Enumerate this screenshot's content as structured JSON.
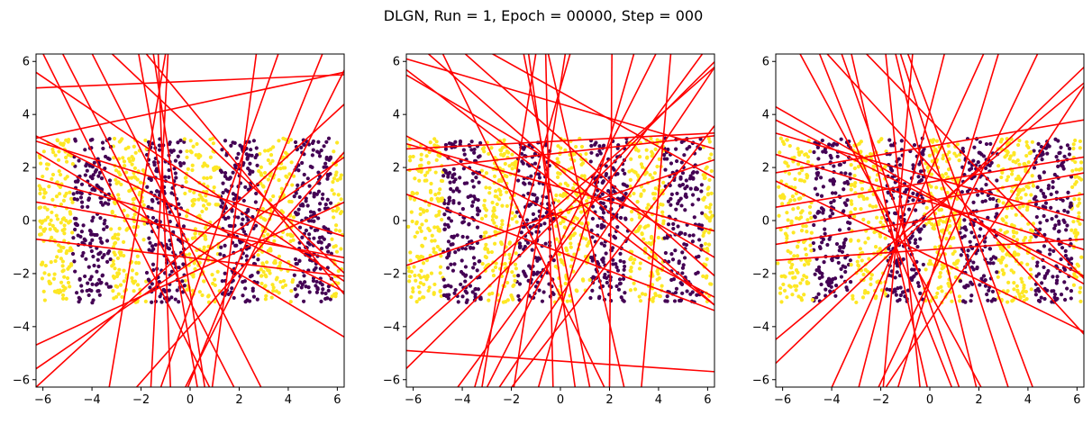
{
  "figure": {
    "suptitle": "DLGN, Run = 1, Epoch = 00000, Step = 000"
  },
  "colors": {
    "class_a": "#fde725",
    "class_b": "#440154",
    "lines": "#ff0000",
    "frame": "#000000"
  },
  "chart_data": [
    {
      "type": "scatter",
      "title": "",
      "xlabel": "",
      "ylabel": "",
      "xlim": [
        -6.28,
        6.28
      ],
      "ylim": [
        -6.28,
        6.28
      ],
      "xticks": [
        -6,
        -4,
        -2,
        0,
        2,
        4,
        6
      ],
      "yticks": [
        -6,
        -4,
        -2,
        0,
        2,
        4,
        6
      ],
      "grid": false,
      "point_data": {
        "x_range": [
          -6.2,
          6.2
        ],
        "y_range": [
          -3.1,
          3.1
        ],
        "stripe_width": 1.55,
        "class_b_stripe_centers": [
          -4,
          -1,
          2,
          5
        ],
        "points_per_stripe": 150
      },
      "series": [
        {
          "values": [
            [
              -6.3,
              3.1,
              6.3,
              5.6
            ],
            [
              -6.3,
              5.0,
              6.3,
              5.5
            ],
            [
              -6.3,
              5.6,
              6.3,
              -2.3
            ],
            [
              -6.3,
              2.6,
              6.3,
              -4.4
            ],
            [
              -6.3,
              3.2,
              6.3,
              -2.7
            ],
            [
              -6.3,
              1.6,
              6.3,
              -1.6
            ],
            [
              -6.3,
              0.7,
              6.3,
              -1.4
            ],
            [
              -6.3,
              -0.7,
              6.3,
              -2.1
            ],
            [
              -6.3,
              -4.7,
              6.3,
              0.7
            ],
            [
              -6.3,
              -5.6,
              6.3,
              2.4
            ],
            [
              -6.3,
              -6.3,
              6.3,
              4.4
            ],
            [
              -6.3,
              3.0,
              6.3,
              -0.6
            ],
            [
              -6.0,
              6.3,
              0.8,
              -6.3
            ],
            [
              -5.2,
              6.3,
              1.8,
              -6.3
            ],
            [
              -4.0,
              6.3,
              2.9,
              -6.3
            ],
            [
              -2.1,
              6.3,
              0.3,
              -6.3
            ],
            [
              -1.5,
              6.3,
              0.6,
              -6.3
            ],
            [
              -0.9,
              6.3,
              -1.6,
              -6.3
            ],
            [
              -1.3,
              6.3,
              -0.8,
              -6.3
            ],
            [
              -1.0,
              6.3,
              -3.3,
              -6.3
            ],
            [
              3.6,
              6.3,
              -1.2,
              -6.3
            ],
            [
              5.4,
              6.3,
              -0.1,
              -6.3
            ],
            [
              2.7,
              6.3,
              0.9,
              -6.3
            ],
            [
              6.3,
              5.7,
              -0.2,
              -6.3
            ],
            [
              6.3,
              2.6,
              -2.2,
              -6.3
            ],
            [
              -1.8,
              6.3,
              6.3,
              -2.8
            ],
            [
              -3.2,
              6.3,
              6.3,
              -2.0
            ]
          ]
        }
      ]
    },
    {
      "type": "scatter",
      "title": "",
      "xlabel": "",
      "ylabel": "",
      "xlim": [
        -6.28,
        6.28
      ],
      "ylim": [
        -6.28,
        6.28
      ],
      "xticks": [
        -6,
        -4,
        -2,
        0,
        2,
        4,
        6
      ],
      "yticks": [
        -6,
        -4,
        -2,
        0,
        2,
        4,
        6
      ],
      "grid": false,
      "point_data": {
        "x_range": [
          -6.2,
          6.2
        ],
        "y_range": [
          -3.1,
          3.1
        ],
        "stripe_width": 1.55,
        "class_b_stripe_centers": [
          -4,
          -1,
          2,
          5
        ],
        "points_per_stripe": 150
      },
      "series": [
        {
          "values": [
            [
              -6.3,
              5.7,
              6.3,
              -3.2
            ],
            [
              -6.3,
              5.5,
              6.3,
              -1.4
            ],
            [
              -6.3,
              3.2,
              6.3,
              -2.9
            ],
            [
              -6.3,
              2.9,
              6.3,
              -0.4
            ],
            [
              -6.3,
              1.9,
              6.3,
              3.2
            ],
            [
              -6.3,
              2.7,
              6.3,
              3.3
            ],
            [
              -6.3,
              -1.7,
              6.3,
              2.3
            ],
            [
              -6.3,
              -4.5,
              6.3,
              5.8
            ],
            [
              -6.3,
              -5.6,
              6.3,
              6.0
            ],
            [
              -6.3,
              -4.9,
              6.3,
              -5.7
            ],
            [
              -6.3,
              6.1,
              6.3,
              2.7
            ],
            [
              -6.3,
              1.0,
              6.3,
              -3.4
            ],
            [
              -5.4,
              6.3,
              6.3,
              -3.2
            ],
            [
              -3.9,
              6.3,
              6.3,
              -2.1
            ],
            [
              -2.8,
              6.3,
              6.3,
              1.6
            ],
            [
              -4.8,
              6.3,
              1.8,
              -6.3
            ],
            [
              -1.0,
              6.3,
              -3.2,
              -6.3
            ],
            [
              0.2,
              6.3,
              -1.9,
              -6.3
            ],
            [
              0.4,
              6.3,
              -3.5,
              -6.3
            ],
            [
              3.9,
              6.3,
              -3.0,
              -6.3
            ],
            [
              5.8,
              6.3,
              -4.2,
              -6.3
            ],
            [
              6.3,
              5.8,
              -2.5,
              -6.3
            ],
            [
              6.3,
              3.6,
              -2.0,
              -6.3
            ],
            [
              -1.3,
              6.3,
              0.6,
              -6.3
            ],
            [
              -0.6,
              6.3,
              -0.3,
              -6.3
            ],
            [
              2.1,
              6.3,
              2.0,
              -6.3
            ],
            [
              4.5,
              6.3,
              3.3,
              -6.3
            ],
            [
              -0.5,
              6.3,
              2.6,
              -6.3
            ],
            [
              -1.5,
              6.3,
              1.2,
              -6.3
            ],
            [
              3.0,
              6.3,
              -0.9,
              -6.3
            ]
          ]
        }
      ]
    },
    {
      "type": "scatter",
      "title": "",
      "xlabel": "",
      "ylabel": "",
      "xlim": [
        -6.28,
        6.28
      ],
      "ylim": [
        -6.28,
        6.28
      ],
      "xticks": [
        -6,
        -4,
        -2,
        0,
        2,
        4,
        6
      ],
      "yticks": [
        -6,
        -4,
        -2,
        0,
        2,
        4,
        6
      ],
      "grid": false,
      "point_data": {
        "x_range": [
          -6.2,
          6.2
        ],
        "y_range": [
          -3.1,
          3.1
        ],
        "stripe_width": 1.55,
        "class_b_stripe_centers": [
          -4,
          -1,
          2,
          5
        ],
        "points_per_stripe": 150
      },
      "series": [
        {
          "values": [
            [
              -6.3,
              4.3,
              6.3,
              -2.4
            ],
            [
              -6.3,
              3.3,
              6.3,
              0.0
            ],
            [
              -6.3,
              1.8,
              6.3,
              3.8
            ],
            [
              -6.3,
              0.5,
              6.3,
              2.4
            ],
            [
              -6.3,
              -0.9,
              6.3,
              1.0
            ],
            [
              -6.3,
              -1.5,
              6.3,
              -0.7
            ],
            [
              -6.3,
              2.5,
              6.3,
              -1.1
            ],
            [
              -6.3,
              3.8,
              6.3,
              -2.1
            ],
            [
              -6.3,
              -4.5,
              6.3,
              5.2
            ],
            [
              -6.3,
              -5.4,
              6.3,
              5.8
            ],
            [
              -6.3,
              1.5,
              6.3,
              -4.2
            ],
            [
              -6.3,
              -0.3,
              6.3,
              1.8
            ],
            [
              -5.3,
              6.3,
              2.1,
              -6.3
            ],
            [
              -4.5,
              6.3,
              0.9,
              -6.3
            ],
            [
              -3.6,
              6.3,
              1.2,
              -6.3
            ],
            [
              -3.2,
              6.3,
              -0.1,
              -6.3
            ],
            [
              -1.8,
              6.3,
              -0.4,
              -6.3
            ],
            [
              -0.7,
              6.3,
              -1.9,
              -6.3
            ],
            [
              0.6,
              6.3,
              -2.9,
              -6.3
            ],
            [
              2.8,
              6.3,
              -1.3,
              -6.3
            ],
            [
              4.4,
              6.3,
              -2.1,
              -6.3
            ],
            [
              6.3,
              5.1,
              -1.8,
              -6.3
            ],
            [
              -1.4,
              6.3,
              1.9,
              -6.3
            ],
            [
              -0.9,
              6.3,
              4.2,
              -6.3
            ],
            [
              -2.6,
              6.3,
              6.3,
              -2.2
            ],
            [
              -4.2,
              6.3,
              6.3,
              -4.3
            ],
            [
              2.2,
              6.3,
              -4.0,
              -6.3
            ],
            [
              -1.2,
              6.3,
              3.2,
              -6.3
            ]
          ]
        }
      ]
    }
  ]
}
